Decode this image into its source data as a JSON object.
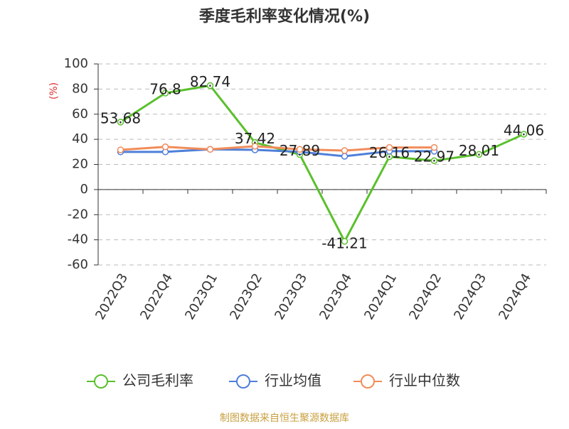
{
  "chart_data": {
    "type": "line",
    "title": "季度毛利率变化情况(%)",
    "y_label": "(%)",
    "categories": [
      "2022Q3",
      "2022Q4",
      "2023Q1",
      "2023Q2",
      "2023Q3",
      "2023Q4",
      "2024Q1",
      "2024Q2",
      "2024Q3",
      "2024Q4"
    ],
    "series": [
      {
        "name": "公司毛利率",
        "color": "#5ac02c",
        "values": [
          53.68,
          76.8,
          82.74,
          37.42,
          27.89,
          -41.21,
          26.16,
          22.97,
          28.01,
          44.06
        ],
        "labels": true
      },
      {
        "name": "行业均值",
        "color": "#4e7fd9",
        "values": [
          30,
          30,
          32,
          31.6,
          30,
          26.5,
          30.5,
          30.5,
          null,
          null
        ]
      },
      {
        "name": "行业中位数",
        "color": "#f28c5a",
        "values": [
          31.6,
          34,
          32,
          34.5,
          32,
          31,
          33.5,
          33.5,
          null,
          null
        ]
      }
    ],
    "ylim": [
      -60,
      100
    ],
    "yticks": [
      -60,
      -40,
      -20,
      0,
      20,
      40,
      60,
      80,
      100
    ],
    "grid": true,
    "source": "制图数据来自恒生聚源数据库"
  }
}
